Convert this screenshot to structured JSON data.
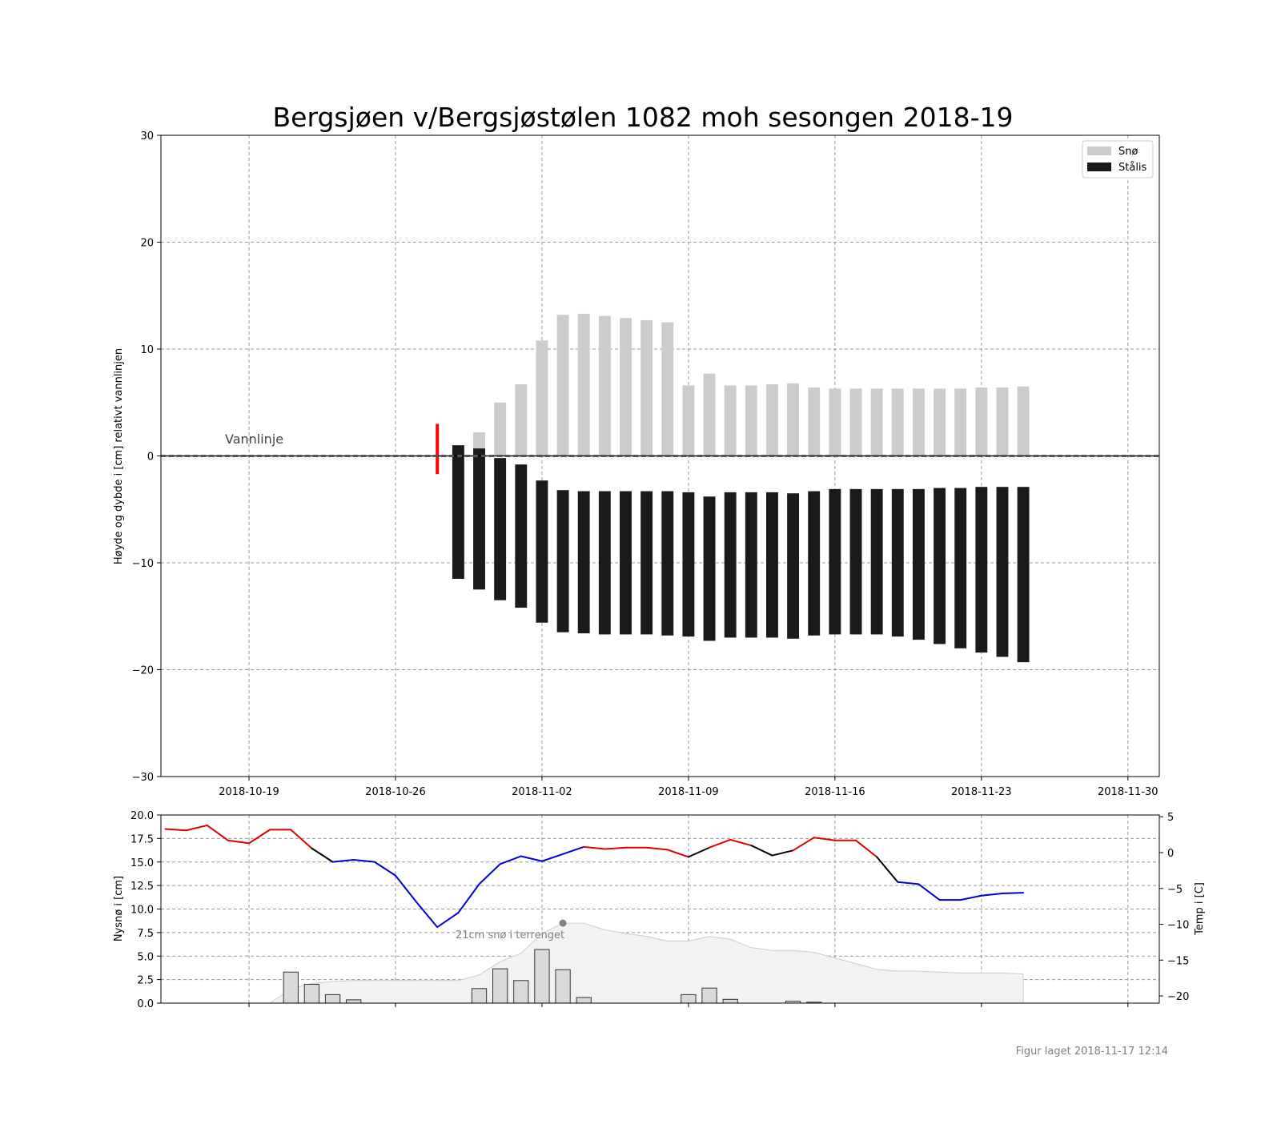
{
  "title": "Bergsjøen v/Bergsjøstølen 1082 moh sesongen 2018-19",
  "footer": "Figur laget 2018-11-17 12:14",
  "colors": {
    "snow": "#cccccc",
    "ice": "#1a1a1a",
    "warm": "#e00000",
    "neutral": "#000000",
    "cold": "#0000dd",
    "red_marker": "#ff0000",
    "terrain_fill": "#f2f2f2",
    "terrain_line": "#cccccc",
    "grid": "#999999"
  },
  "chart_data": [
    {
      "type": "bar",
      "subtype": "stacked-ice-snow",
      "ylabel": "Høyde og dybde i [cm] relativt vannlinjen",
      "ylim": [
        -30,
        30
      ],
      "yticks": [
        30,
        20,
        10,
        0,
        -10,
        -20,
        -30
      ],
      "ytick_labels": [
        "30",
        "20",
        "10",
        "0",
        "−10",
        "−20",
        "−30"
      ],
      "xlim": [
        "2018-10-14T19:00",
        "2018-12-01T12:00"
      ],
      "xticks": [
        "2018-10-19",
        "2018-10-26",
        "2018-11-02",
        "2018-11-09",
        "2018-11-16",
        "2018-11-23",
        "2018-11-30"
      ],
      "grid": true,
      "legend": {
        "placement": "top-right",
        "entries": [
          "Snø",
          "Stålis"
        ]
      },
      "waterline": {
        "y": 0,
        "label": "Vannlinje"
      },
      "red_marker": {
        "x": "2018-10-28",
        "y_top": 3,
        "y_bottom": -1.7
      },
      "series": {
        "dates": [
          "2018-10-29",
          "2018-10-30",
          "2018-10-31",
          "2018-11-01",
          "2018-11-02",
          "2018-11-03",
          "2018-11-04",
          "2018-11-05",
          "2018-11-06",
          "2018-11-07",
          "2018-11-08",
          "2018-11-09",
          "2018-11-10",
          "2018-11-11",
          "2018-11-12",
          "2018-11-13",
          "2018-11-14",
          "2018-11-15",
          "2018-11-16",
          "2018-11-17",
          "2018-11-18",
          "2018-11-19",
          "2018-11-20",
          "2018-11-21",
          "2018-11-22",
          "2018-11-23",
          "2018-11-24",
          "2018-11-25"
        ],
        "ice_top": [
          1.0,
          0.7,
          -0.2,
          -0.8,
          -2.3,
          -3.2,
          -3.3,
          -3.3,
          -3.3,
          -3.3,
          -3.3,
          -3.4,
          -3.8,
          -3.4,
          -3.4,
          -3.4,
          -3.5,
          -3.3,
          -3.1,
          -3.1,
          -3.1,
          -3.1,
          -3.1,
          -3.0,
          -3.0,
          -2.9,
          -2.9,
          -2.9
        ],
        "ice_bottom": [
          -11.5,
          -12.5,
          -13.5,
          -14.2,
          -15.6,
          -16.5,
          -16.6,
          -16.7,
          -16.7,
          -16.7,
          -16.8,
          -16.9,
          -17.3,
          -17.0,
          -17.0,
          -17.0,
          -17.1,
          -16.8,
          -16.7,
          -16.7,
          -16.7,
          -16.9,
          -17.2,
          -17.6,
          -18.0,
          -18.4,
          -18.8,
          -19.3
        ],
        "snow_top": [
          0,
          2.2,
          5.0,
          6.7,
          10.8,
          13.2,
          13.3,
          13.1,
          12.9,
          12.7,
          12.5,
          6.6,
          7.7,
          6.6,
          6.6,
          6.7,
          6.8,
          6.4,
          6.3,
          6.3,
          6.3,
          6.3,
          6.3,
          6.3,
          6.3,
          6.4,
          6.4,
          6.5
        ]
      }
    },
    {
      "type": "bar",
      "subtype": "new-snow-and-temperature",
      "ylabel": "Nysnø i [cm]",
      "ylim": [
        0,
        20
      ],
      "yticks": [
        20.0,
        17.5,
        15.0,
        12.5,
        10.0,
        7.5,
        5.0,
        2.5,
        0.0
      ],
      "ytick_labels": [
        "20.0",
        "17.5",
        "15.0",
        "12.5",
        "10.0",
        "7.5",
        "5.0",
        "2.5",
        "0.0"
      ],
      "y2label": "Temp i [C]",
      "y2lim": [
        -21,
        5.25
      ],
      "y2ticks": [
        5,
        0,
        -5,
        -10,
        -15,
        -20
      ],
      "y2tick_labels": [
        "5",
        "0",
        "−5",
        "−10",
        "−15",
        "−20"
      ],
      "xlim": [
        "2018-10-14T19:00",
        "2018-12-01T12:00"
      ],
      "grid": true,
      "annotation": {
        "text": "21cm snø i terrenget",
        "x": "2018-11-03",
        "y": 8.5
      },
      "new_snow": {
        "dates": [
          "2018-10-21",
          "2018-10-22",
          "2018-10-23",
          "2018-10-24",
          "2018-10-30",
          "2018-10-31",
          "2018-11-01",
          "2018-11-02",
          "2018-11-03",
          "2018-11-04",
          "2018-11-09",
          "2018-11-10",
          "2018-11-11",
          "2018-11-14",
          "2018-11-15"
        ],
        "values": [
          3.3,
          2.0,
          0.9,
          0.35,
          1.55,
          3.65,
          2.4,
          5.7,
          3.55,
          0.6,
          0.9,
          1.6,
          0.4,
          0.2,
          0.1
        ]
      },
      "terrain_snow": {
        "dates": [
          "2018-10-20",
          "2018-10-21",
          "2018-10-22",
          "2018-10-23",
          "2018-10-24",
          "2018-10-25",
          "2018-10-26",
          "2018-10-27",
          "2018-10-28",
          "2018-10-29",
          "2018-10-30",
          "2018-10-31",
          "2018-11-01",
          "2018-11-02",
          "2018-11-03",
          "2018-11-04",
          "2018-11-05",
          "2018-11-06",
          "2018-11-07",
          "2018-11-08",
          "2018-11-09",
          "2018-11-10",
          "2018-11-11",
          "2018-11-12",
          "2018-11-13",
          "2018-11-14",
          "2018-11-15",
          "2018-11-16",
          "2018-11-17",
          "2018-11-18",
          "2018-11-19",
          "2018-11-20",
          "2018-11-21",
          "2018-11-22",
          "2018-11-23",
          "2018-11-24",
          "2018-11-25"
        ],
        "values": [
          0,
          1.5,
          2.1,
          2.3,
          2.4,
          2.4,
          2.4,
          2.4,
          2.4,
          2.4,
          3.0,
          4.4,
          5.3,
          7.4,
          8.5,
          8.5,
          7.8,
          7.4,
          7.1,
          6.6,
          6.6,
          7.1,
          6.8,
          5.9,
          5.6,
          5.6,
          5.4,
          4.8,
          4.2,
          3.6,
          3.4,
          3.4,
          3.3,
          3.2,
          3.2,
          3.2,
          3.1
        ]
      },
      "temperature": {
        "dates": [
          "2018-10-15",
          "2018-10-16",
          "2018-10-17",
          "2018-10-18",
          "2018-10-19",
          "2018-10-20",
          "2018-10-21",
          "2018-10-22",
          "2018-10-23",
          "2018-10-24",
          "2018-10-25",
          "2018-10-26",
          "2018-10-27",
          "2018-10-28",
          "2018-10-29",
          "2018-10-30",
          "2018-10-31",
          "2018-11-01",
          "2018-11-02",
          "2018-11-03",
          "2018-11-04",
          "2018-11-05",
          "2018-11-06",
          "2018-11-07",
          "2018-11-08",
          "2018-11-09",
          "2018-11-10",
          "2018-11-11",
          "2018-11-12",
          "2018-11-13",
          "2018-11-14",
          "2018-11-15",
          "2018-11-16",
          "2018-11-17",
          "2018-11-18",
          "2018-11-19",
          "2018-11-20",
          "2018-11-21",
          "2018-11-22",
          "2018-11-23",
          "2018-11-24",
          "2018-11-25"
        ],
        "values": [
          3.3,
          3.1,
          3.8,
          1.7,
          1.3,
          3.2,
          3.2,
          0.6,
          -1.3,
          -1.0,
          -1.3,
          -3.2,
          -6.9,
          -10.4,
          -8.4,
          -4.4,
          -1.6,
          -0.5,
          -1.2,
          -0.2,
          0.8,
          0.5,
          0.7,
          0.7,
          0.4,
          -0.6,
          0.7,
          1.8,
          1.0,
          -0.4,
          0.3,
          2.1,
          1.7,
          1.7,
          -0.6,
          -4.1,
          -4.4,
          -6.6,
          -6.6,
          -6.0,
          -5.7,
          -5.6
        ],
        "segment_colors": [
          "warm",
          "warm",
          "warm",
          "warm",
          "warm",
          "warm",
          "warm",
          "neutral",
          "cold",
          "cold",
          "cold",
          "cold",
          "cold",
          "cold",
          "cold",
          "cold",
          "cold",
          "cold",
          "cold",
          "cold",
          "warm",
          "warm",
          "warm",
          "warm",
          "warm",
          "neutral",
          "warm",
          "warm",
          "neutral",
          "neutral",
          "warm",
          "warm",
          "warm",
          "warm",
          "neutral",
          "cold",
          "cold",
          "cold",
          "cold",
          "cold",
          "cold"
        ]
      }
    }
  ]
}
